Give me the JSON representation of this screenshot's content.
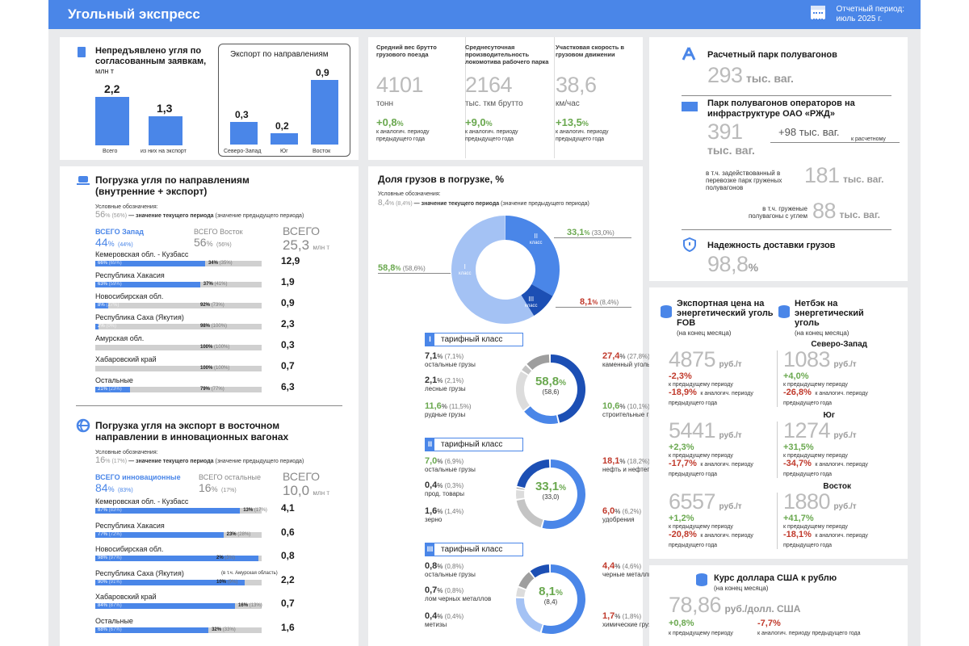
{
  "header": {
    "title": "Угольный экспресс",
    "period_label": "Отчетный период:",
    "period_value": "июль 2025 г."
  },
  "undelivered": {
    "title": "Непредъявлено угля по согласованным заявкам,",
    "unit": "млн т",
    "bars": [
      {
        "label": "Всего",
        "value": "2,2",
        "num": 2.2
      },
      {
        "label": "из них на экспорт",
        "value": "1,3",
        "num": 1.3
      }
    ]
  },
  "export_dir": {
    "title": "Экспорт по направлениям",
    "bars": [
      {
        "label": "Северо-Запад",
        "value": "0,3",
        "num": 0.3
      },
      {
        "label": "Юг",
        "value": "0,2",
        "num": 0.2
      },
      {
        "label": "Восток",
        "value": "0,9",
        "num": 0.9
      }
    ]
  },
  "kpi": [
    {
      "title": "Средний вес брутто грузового поезда",
      "value": "4101",
      "unit": "тонн",
      "change": "+0,8",
      "pct": "%",
      "note": "к аналогич. периоду предыдущего года"
    },
    {
      "title": "Среднесуточная производительность локомотива рабочего парка",
      "value": "2164",
      "unit": "тыс. ткм брутто",
      "change": "+9,0",
      "pct": "%",
      "note": "к аналогич. периоду предыдущего года"
    },
    {
      "title": "Участковая скорость в грузовом движении",
      "value": "38,6",
      "unit": "км/час",
      "change": "+13,5",
      "pct": "%",
      "note": "к аналогич. периоду предыдущего года"
    }
  ],
  "fleet": {
    "title1": "Расчетный парк полувагонов",
    "v1": "293",
    "u1": "тыс. ваг.",
    "title2": "Парк полувагонов операторов на инфраструктуре ОАО «РЖД»",
    "v2": "391",
    "u2": "тыс. ваг.",
    "delta": "+98",
    "delta_unit": "тыс. ваг.",
    "delta_note": "к расчетному",
    "sub1": "в т.ч. задействованный в перевозке парк груженых полувагонов",
    "v3": "181",
    "u3": "тыс. ваг.",
    "sub2": "в т.ч. груженые полувагоны с углем",
    "v4": "88",
    "u4": "тыс. ваг.",
    "rel_title": "Надежность доставки грузов",
    "rel_val": "98,8",
    "rel_unit": "%"
  },
  "loading": {
    "title": "Погрузка угля по направлениям (внутренние + экспорт)",
    "legend_title": "Условные обозначения:",
    "legend_cur": "56",
    "legend_prev": "(56%)",
    "legend_text": "— значение текущего периода",
    "legend_text2": "(значение предыдущего периода)",
    "west_label": "ВСЕГО Запад",
    "west_val": "44",
    "west_prev": "(44%)",
    "east_label": "ВСЕГО Восток",
    "east_val": "56",
    "east_prev": "(56%)",
    "total_label": "ВСЕГО",
    "total_val": "25,3",
    "total_unit": "млн т",
    "rows": [
      {
        "name": "Кемеровская обл. - Кузбасс",
        "w": 66,
        "wt": "66%",
        "wp": "(65%)",
        "et": "34%",
        "ep": "(35%)",
        "v": "12,9"
      },
      {
        "name": "Республика Хакасия",
        "w": 63,
        "wt": "63%",
        "wp": "(59%)",
        "et": "37%",
        "ep": "(41%)",
        "v": "1,9"
      },
      {
        "name": "Новосибирская обл.",
        "w": 8,
        "wt": "8%",
        "wp": "(27%)",
        "et": "92%",
        "ep": "(73%)",
        "v": "0,9"
      },
      {
        "name": "Республика Саха (Якутия)",
        "w": 2,
        "wt": "2%",
        "wp": "(0%)",
        "et": "98%",
        "ep": "(100%)",
        "v": "2,3"
      },
      {
        "name": "Амурская обл.",
        "w": 0,
        "wt": "",
        "wp": "",
        "et": "100%",
        "ep": "(100%)",
        "v": "0,3"
      },
      {
        "name": "Хабаровский край",
        "w": 0,
        "wt": "",
        "wp": "",
        "et": "100%",
        "ep": "(100%)",
        "v": "0,7"
      },
      {
        "name": "Остальные",
        "w": 21,
        "wt": "21%",
        "wp": "(23%)",
        "et": "79%",
        "ep": "(77%)",
        "v": "6,3"
      }
    ]
  },
  "innov": {
    "title": "Погрузка угля на экспорт в восточном направлении в инновационных вагонах",
    "legend_title": "Условные обозначения:",
    "legend_cur": "16",
    "legend_prev": "(17%)",
    "legend_text": "— значение текущего периода",
    "legend_text2": "(значение предыдущего периода)",
    "a_label": "ВСЕГО инновационные",
    "a_val": "84",
    "a_prev": "(83%)",
    "b_label": "ВСЕГО остальные",
    "b_val": "16",
    "b_prev": "(17%)",
    "total_label": "ВСЕГО",
    "total_val": "10,0",
    "total_unit": "млн т",
    "rows": [
      {
        "name": "Кемеровская обл. - Кузбасс",
        "w": 87,
        "wt": "87%",
        "wp": "(83%)",
        "et": "13%",
        "ep": "(17%)",
        "v": "4,1"
      },
      {
        "name": "Республика Хакасия",
        "w": 77,
        "wt": "77%",
        "wp": "(72%)",
        "et": "23%",
        "ep": "(28%)",
        "v": "0,6"
      },
      {
        "name": "Новосибирская обл.",
        "w": 98,
        "wt": "98%",
        "wp": "(97%)",
        "et": "2%",
        "ep": "(3%)",
        "v": "0,8"
      },
      {
        "name": "Республика Саха (Якутия)",
        "note": "(в т.ч. Амурская область)",
        "w": 90,
        "wt": "90%",
        "wp": "(91%)",
        "et": "10%",
        "ep": "(9%)",
        "v": "2,2"
      },
      {
        "name": "Хабаровский край",
        "w": 84,
        "wt": "84%",
        "wp": "(87%)",
        "et": "16%",
        "ep": "(13%)",
        "v": "0,7"
      },
      {
        "name": "Остальные",
        "w": 68,
        "wt": "68%",
        "wp": "(67%)",
        "et": "32%",
        "ep": "(33%)",
        "v": "1,6"
      }
    ]
  },
  "share": {
    "title": "Доля грузов в погрузке, %",
    "legend_title": "Условные обозначения:",
    "legend_cur": "8,4",
    "legend_prev": "(8,4%)",
    "legend_text": "— значение текущего периода",
    "legend_text2": "(значение предыдущего периода)",
    "c1": "I",
    "c1w": "класс",
    "c1v": "58,8",
    "c1p": "(58,6%)",
    "c2": "II",
    "c2w": "класс",
    "c2v": "33,1",
    "c2p": "(33,0%)",
    "c3": "III",
    "c3w": "класс",
    "c3v": "8,1",
    "c3p": "(8,4%)"
  },
  "class1": {
    "num": "I",
    "label": "тарифный класс",
    "center": "58,8",
    "center_prev": "(58,6)",
    "items": [
      {
        "v": "7,1",
        "p": "(7,1%)",
        "t": "остальные грузы"
      },
      {
        "v": "2,1",
        "p": "(2,1%)",
        "t": "лесные грузы"
      },
      {
        "v": "11,6",
        "p": "(11,5%)",
        "t": "рудные грузы"
      },
      {
        "v": "27,4",
        "p": "(27,8%)",
        "t": "каменный уголь"
      },
      {
        "v": "10,6",
        "p": "(10,1%)",
        "t": "строительные грузы"
      }
    ]
  },
  "class2": {
    "num": "II",
    "label": "тарифный класс",
    "center": "33,1",
    "center_prev": "(33,0)",
    "items": [
      {
        "v": "7,0",
        "p": "(6,9%)",
        "t": "остальные грузы"
      },
      {
        "v": "0,4",
        "p": "(0,3%)",
        "t": "прод. товары"
      },
      {
        "v": "1,6",
        "p": "(1,4%)",
        "t": "зерно"
      },
      {
        "v": "18,1",
        "p": "(18,2%)",
        "t": "нефть и нефтепродукты"
      },
      {
        "v": "6,0",
        "p": "(6,2%)",
        "t": "удобрения"
      }
    ]
  },
  "class3": {
    "num": "III",
    "label": "тарифный класс",
    "center": "8,1",
    "center_prev": "(8,4)",
    "items": [
      {
        "v": "0,8",
        "p": "(0,8%)",
        "t": "остальные грузы"
      },
      {
        "v": "0,7",
        "p": "(0,8%)",
        "t": "лом черных металлов"
      },
      {
        "v": "0,4",
        "p": "(0,4%)",
        "t": "метизы"
      },
      {
        "v": "4,4",
        "p": "(4,6%)",
        "t": "черные металлы"
      },
      {
        "v": "1,7",
        "p": "(1,8%)",
        "t": "химические грузы"
      }
    ]
  },
  "prices": {
    "col1_title": "Экспортная цена на энергетический уголь FOB",
    "col1_sub": "(на конец месяца)",
    "col2_title": "Нетбэк на энергетический уголь",
    "col2_sub": "(на конец месяца)",
    "unit": "руб./т",
    "prev_period": "к предыдущему периоду",
    "prev_year": "к аналогич. периоду предыдущего года",
    "regions": [
      {
        "name": "Северо-Запад",
        "fob": "4875",
        "fob_m": "-2,3%",
        "fob_y": "-18,9%",
        "nb": "1083",
        "nb_m": "+4,0%",
        "nb_y": "-26,8%"
      },
      {
        "name": "Юг",
        "fob": "5441",
        "fob_m": "+2,3%",
        "fob_y": "-17,7%",
        "nb": "1274",
        "nb_m": "+31,5%",
        "nb_y": "-34,7%"
      },
      {
        "name": "Восток",
        "fob": "6557",
        "fob_m": "+1,2%",
        "fob_y": "-20,8%",
        "nb": "1880",
        "nb_m": "+41,7%",
        "nb_y": "-18,1%"
      }
    ]
  },
  "usd": {
    "title": "Курс доллара США к рублю",
    "sub": "(на конец месяца)",
    "value": "78,86",
    "unit": "руб./долл. США",
    "m": "+0,8%",
    "m_note": "к предыдущему периоду",
    "y": "-7,7%",
    "y_note": "к аналогич. периоду предыдущего года"
  },
  "colors": {
    "accent": "#4a86e8",
    "dark": "#1c4fb4",
    "light": "#a4c2f4",
    "green": "#6aa84f",
    "red": "#c0392b"
  }
}
